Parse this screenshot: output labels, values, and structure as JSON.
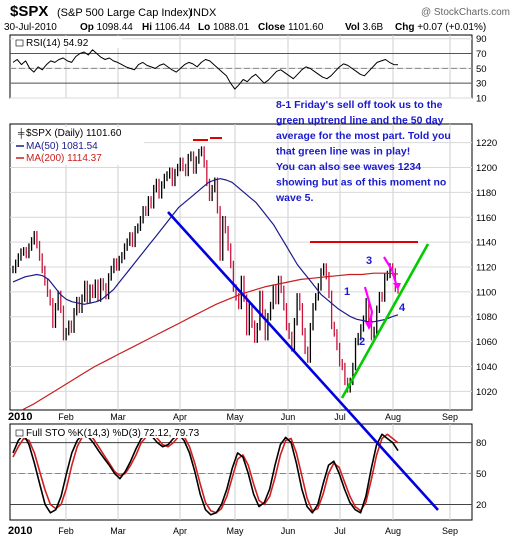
{
  "header": {
    "symbol": "$SPX",
    "name": "(S&P 500 Large Cap Index)",
    "exchange": "INDX",
    "watermark": "@ StockCharts.com",
    "date": "30-Jul-2010",
    "stats": [
      {
        "label": "Op",
        "value": "1098.44"
      },
      {
        "label": "Hi",
        "value": "1106.44"
      },
      {
        "label": "Lo",
        "value": "1088.01"
      },
      {
        "label": "Close",
        "value": "1101.60"
      },
      {
        "label": "Vol",
        "value": "3.6B"
      },
      {
        "label": "Chg",
        "value": "+0.07 (+0.01%)"
      }
    ]
  },
  "chart_data": [
    {
      "type": "line",
      "panel": "rsi",
      "title": "RSI(14) 54.92",
      "ylim": [
        10,
        95
      ],
      "ticks": [
        10,
        30,
        50,
        70,
        90
      ],
      "reference_lines": [
        30,
        70
      ],
      "line_color": "#000000",
      "values": [
        58,
        62,
        55,
        60,
        50,
        45,
        52,
        48,
        55,
        60,
        58,
        62,
        64,
        60,
        58,
        66,
        70,
        72,
        68,
        75,
        70,
        65,
        62,
        64,
        60,
        58,
        55,
        52,
        50,
        48,
        55,
        58,
        54,
        52,
        50,
        54,
        56,
        52,
        48,
        45,
        50,
        55,
        58,
        56,
        52,
        58,
        62,
        60,
        55,
        50,
        45,
        40,
        30,
        22,
        28,
        35,
        32,
        38,
        42,
        36,
        30,
        34,
        40,
        46,
        48,
        44,
        40,
        36,
        42,
        48,
        52,
        50,
        46,
        42,
        38,
        36,
        40,
        46,
        52,
        56,
        54,
        50,
        46,
        42,
        40,
        46,
        52,
        58,
        60,
        62,
        58,
        55,
        54.92
      ]
    },
    {
      "type": "line",
      "panel": "price",
      "title": "$SPX (Daily) 1101.60",
      "ylim": [
        1005,
        1235
      ],
      "ticks": [
        1020,
        1040,
        1060,
        1080,
        1100,
        1120,
        1140,
        1160,
        1180,
        1200,
        1220
      ],
      "x_labels": [
        "2010",
        "Feb",
        "Mar",
        "Apr",
        "May",
        "Jun",
        "Jul",
        "Aug",
        "Sep"
      ],
      "series": [
        {
          "name": "MA(50) 1081.54",
          "color": "#1c1c8c",
          "values": [
            1108,
            1110,
            1112,
            1113,
            1114,
            1113,
            1110,
            1104,
            1098,
            1094,
            1092,
            1091,
            1090,
            1091,
            1092,
            1094,
            1098,
            1102,
            1108,
            1114,
            1120,
            1126,
            1132,
            1138,
            1144,
            1150,
            1156,
            1162,
            1168,
            1172,
            1176,
            1180,
            1184,
            1188,
            1190,
            1191,
            1190,
            1188,
            1184,
            1180,
            1176,
            1172,
            1166,
            1160,
            1154,
            1146,
            1138,
            1130,
            1122,
            1116,
            1110,
            1104,
            1098,
            1094,
            1090,
            1086,
            1083,
            1080,
            1078,
            1077,
            1076,
            1076,
            1077,
            1078,
            1080,
            1081.54
          ]
        },
        {
          "name": "MA(200) 1114.37",
          "color": "#c81e1e",
          "values": [
            1005,
            1010,
            1016,
            1022,
            1028,
            1034,
            1040,
            1045,
            1050,
            1055,
            1060,
            1065,
            1070,
            1075,
            1080,
            1085,
            1090,
            1094,
            1098,
            1101,
            1104,
            1106,
            1108,
            1110,
            1111,
            1112,
            1113,
            1114,
            1114,
            1115,
            1115,
            1114.37
          ]
        }
      ],
      "ohlc_close": [
        1118,
        1123,
        1128,
        1132,
        1133,
        1130,
        1136,
        1141,
        1146,
        1138,
        1128,
        1118,
        1108,
        1099,
        1092,
        1074,
        1088,
        1098,
        1086,
        1064,
        1068,
        1074,
        1070,
        1084,
        1093,
        1086,
        1095,
        1106,
        1094,
        1103,
        1098,
        1107,
        1095,
        1108,
        1104,
        1097,
        1112,
        1118,
        1124,
        1120,
        1126,
        1129,
        1136,
        1140,
        1145,
        1139,
        1150,
        1152,
        1158,
        1166,
        1164,
        1174,
        1170,
        1183,
        1188,
        1178,
        1186,
        1192,
        1194,
        1197,
        1188,
        1196,
        1200,
        1205,
        1200,
        1196,
        1208,
        1210,
        1198,
        1206,
        1212,
        1214,
        1203,
        1188,
        1176,
        1183,
        1189,
        1166,
        1128,
        1158,
        1150,
        1136,
        1122,
        1103,
        1096,
        1089,
        1110,
        1095,
        1068,
        1088,
        1074,
        1062,
        1072,
        1098,
        1083,
        1064,
        1080,
        1089,
        1103,
        1093,
        1110,
        1102,
        1088,
        1072,
        1065,
        1055,
        1076,
        1096,
        1088,
        1068,
        1053,
        1046,
        1072,
        1088,
        1096,
        1104,
        1116,
        1120,
        1113,
        1098,
        1073,
        1067,
        1056,
        1043,
        1040,
        1028,
        1022,
        1028,
        1040,
        1060,
        1064,
        1071,
        1078,
        1092,
        1078,
        1064,
        1069,
        1086,
        1097,
        1095,
        1112,
        1114,
        1120,
        1116,
        1103,
        1101.6
      ],
      "annotation": "8-1 Friday's sell off took us to the green uptrend line and the 50 day average for the most part. Told you that green line was in play! You can also see waves 1234 showing but as of this moment no wave 5.",
      "wave_labels": [
        "1",
        "2",
        "3",
        "4"
      ],
      "colors": {
        "blue_trend": "#0000e0",
        "green_trend": "#00cc00",
        "red_resistance": "#e00000",
        "magenta_wave": "#ff00ff",
        "annotation_text": "#1a1ad0"
      }
    },
    {
      "type": "line",
      "panel": "stochastic",
      "title": "Full STO %K(14,3) %D(3) 72.12, 79.73",
      "ylim": [
        5,
        98
      ],
      "ticks": [
        20,
        50,
        80
      ],
      "reference_lines": [
        20,
        50,
        80
      ],
      "x_labels": [
        "2010",
        "Feb",
        "Mar",
        "Apr",
        "May",
        "Jun",
        "Jul",
        "Aug",
        "Sep"
      ],
      "series": [
        {
          "name": "%K",
          "color": "#000000",
          "values": [
            70,
            82,
            88,
            78,
            60,
            40,
            20,
            12,
            15,
            28,
            50,
            70,
            82,
            88,
            86,
            80,
            72,
            65,
            58,
            50,
            45,
            52,
            62,
            74,
            84,
            88,
            86,
            80,
            76,
            78,
            84,
            88,
            82,
            70,
            52,
            30,
            15,
            10,
            12,
            20,
            35,
            55,
            70,
            66,
            50,
            30,
            18,
            22,
            35,
            58,
            78,
            85,
            80,
            60,
            35,
            18,
            12,
            20,
            40,
            58,
            62,
            50,
            35,
            22,
            15,
            12,
            28,
            55,
            78,
            88,
            84,
            80,
            72.12
          ]
        },
        {
          "name": "%D",
          "color": "#d21e1e",
          "values": [
            66,
            76,
            84,
            82,
            70,
            52,
            34,
            20,
            16,
            20,
            36,
            58,
            76,
            86,
            88,
            84,
            76,
            68,
            60,
            52,
            48,
            50,
            58,
            68,
            80,
            86,
            88,
            84,
            78,
            76,
            80,
            86,
            86,
            76,
            60,
            40,
            22,
            14,
            12,
            16,
            28,
            46,
            64,
            68,
            58,
            40,
            24,
            20,
            28,
            46,
            68,
            82,
            84,
            70,
            48,
            26,
            14,
            16,
            30,
            50,
            60,
            56,
            42,
            28,
            18,
            14,
            22,
            44,
            68,
            84,
            88,
            84,
            79.73
          ]
        }
      ]
    }
  ]
}
